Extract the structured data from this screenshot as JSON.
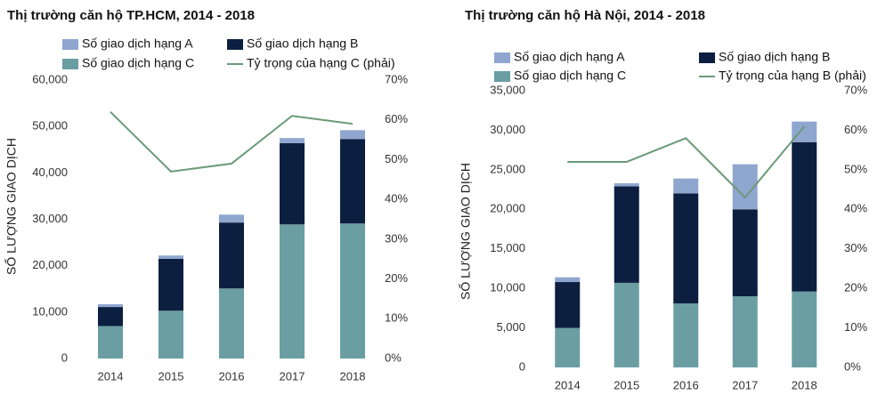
{
  "chart_data": [
    {
      "type": "bar",
      "stacked": true,
      "title": "Thị trường căn hộ TP.HCM, 2014 - 2018",
      "y_label": "SỐ LƯỢNG GIAO DỊCH",
      "categories": [
        "2014",
        "2015",
        "2016",
        "2017",
        "2018"
      ],
      "series": [
        {
          "name": "Số giao dịch hạng C",
          "color": "#6a9ea3",
          "values": [
            7000,
            10300,
            15100,
            28900,
            29100
          ]
        },
        {
          "name": "Số giao dịch hạng B",
          "color": "#0d1f40",
          "values": [
            4100,
            11200,
            14200,
            17500,
            18200
          ]
        },
        {
          "name": "Số giao dịch hạng A",
          "color": "#8fa6cf",
          "values": [
            600,
            700,
            1700,
            1100,
            1900
          ]
        },
        {
          "name": "Tỷ trọng của hạng C (phải)",
          "color": "#6a9a78",
          "type": "line",
          "axis": "y2",
          "values": [
            62,
            47,
            49,
            61,
            59
          ]
        }
      ],
      "legend_order": [
        2,
        1,
        0,
        3
      ],
      "ylim": [
        0,
        60000
      ],
      "yticks": [
        0,
        {
          "value": 10000,
          "label": "10,000"
        },
        {
          "value": 20000,
          "label": "20,000"
        },
        {
          "value": 30000,
          "label": "30,000"
        },
        {
          "value": 40000,
          "label": "40,000"
        },
        {
          "value": 50000,
          "label": "50,000"
        },
        {
          "value": 60000,
          "label": "60,000"
        }
      ],
      "y2lim": [
        0,
        70
      ],
      "y2ticks": [
        {
          "value": 0,
          "label": "0%"
        },
        {
          "value": 10,
          "label": "10%"
        },
        {
          "value": 20,
          "label": "20%"
        },
        {
          "value": 30,
          "label": "30%"
        },
        {
          "value": 40,
          "label": "40%"
        },
        {
          "value": 50,
          "label": "50%"
        },
        {
          "value": 60,
          "label": "60%"
        },
        {
          "value": 70,
          "label": "70%"
        }
      ]
    },
    {
      "type": "bar",
      "stacked": true,
      "title": "Thị trường căn hộ Hà Nội, 2014 - 2018",
      "y_label": "SỐ LƯỢNG GIAO DỊCH",
      "categories": [
        "2014",
        "2015",
        "2016",
        "2017",
        "2018"
      ],
      "series": [
        {
          "name": "Số giao dịch hạng C",
          "color": "#6a9ea3",
          "values": [
            5000,
            10700,
            8100,
            9000,
            9600
          ]
        },
        {
          "name": "Số giao dịch hạng B",
          "color": "#0d1f40",
          "values": [
            5800,
            12200,
            13900,
            11000,
            18900
          ]
        },
        {
          "name": "Số giao dịch hạng A",
          "color": "#8fa6cf",
          "values": [
            600,
            400,
            1900,
            5700,
            2600
          ]
        },
        {
          "name": "Tỷ trọng của hạng B (phải)",
          "color": "#6a9a78",
          "type": "line",
          "axis": "y2",
          "values": [
            52,
            52,
            58,
            43,
            61
          ]
        }
      ],
      "legend_order": [
        2,
        1,
        0,
        3
      ],
      "ylim": [
        0,
        35000
      ],
      "yticks": [
        0,
        {
          "value": 5000,
          "label": "5,000"
        },
        {
          "value": 10000,
          "label": "10,000"
        },
        {
          "value": 15000,
          "label": "15,000"
        },
        {
          "value": 20000,
          "label": "20,000"
        },
        {
          "value": 25000,
          "label": "25,000"
        },
        {
          "value": 30000,
          "label": "30,000"
        },
        {
          "value": 35000,
          "label": "35,000"
        }
      ],
      "y2lim": [
        0,
        70
      ],
      "y2ticks": [
        {
          "value": 0,
          "label": "0%"
        },
        {
          "value": 10,
          "label": "10%"
        },
        {
          "value": 20,
          "label": "20%"
        },
        {
          "value": 30,
          "label": "30%"
        },
        {
          "value": 40,
          "label": "40%"
        },
        {
          "value": 50,
          "label": "50%"
        },
        {
          "value": 60,
          "label": "60%"
        },
        {
          "value": 70,
          "label": "70%"
        }
      ]
    }
  ]
}
